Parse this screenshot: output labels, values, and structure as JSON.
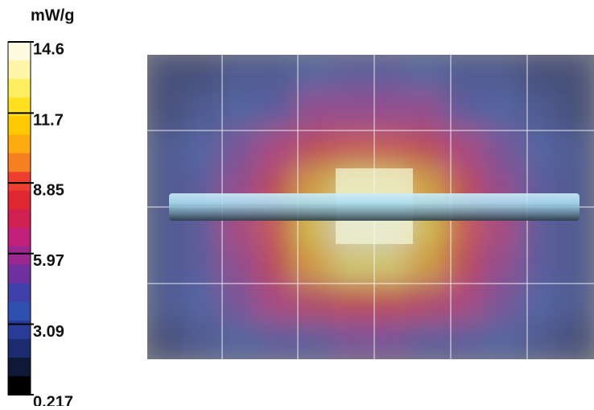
{
  "chart_data": {
    "type": "heatmap",
    "colorbar_label": "mW/g",
    "clim": [
      0.217,
      14.6
    ],
    "cticks": [
      14.6,
      11.7,
      8.85,
      5.97,
      3.09,
      0.217
    ],
    "colors": [
      "#fffbe0",
      "#fff5a8",
      "#ffee60",
      "#ffe020",
      "#ffc800",
      "#ffaa10",
      "#f58020",
      "#ee4030",
      "#e02830",
      "#d02050",
      "#c0207a",
      "#9a2890",
      "#7030a0",
      "#4040a8",
      "#3050b0",
      "#2a3c98",
      "#1c2a70",
      "#101838",
      "#000000"
    ],
    "z": [
      [
        1.5,
        2,
        2.5,
        3,
        3.5,
        4,
        4,
        3.5,
        3,
        2.5,
        2,
        1.5
      ],
      [
        2,
        2.5,
        3.5,
        4.5,
        5.5,
        6,
        6,
        5.5,
        4.5,
        3.5,
        2.5,
        2
      ],
      [
        2.5,
        3.5,
        5,
        6.5,
        8,
        9,
        9,
        8,
        6.5,
        5,
        3.5,
        2.5
      ],
      [
        3,
        4,
        6,
        8,
        10.5,
        13,
        13,
        10.5,
        8,
        6,
        4,
        3
      ],
      [
        3,
        4.5,
        6.5,
        9,
        12,
        14.6,
        14.6,
        12,
        9,
        6.5,
        4.5,
        3
      ],
      [
        3,
        4,
        6,
        8,
        10.5,
        13,
        13,
        10.5,
        8,
        6,
        4,
        3
      ],
      [
        2.5,
        3.5,
        5,
        6.5,
        7.5,
        8,
        8,
        7.5,
        6.5,
        5,
        3.5,
        2.5
      ],
      [
        2,
        2.5,
        3.5,
        4,
        4.5,
        5,
        5,
        4.5,
        4,
        3.5,
        2.5,
        2
      ]
    ]
  }
}
